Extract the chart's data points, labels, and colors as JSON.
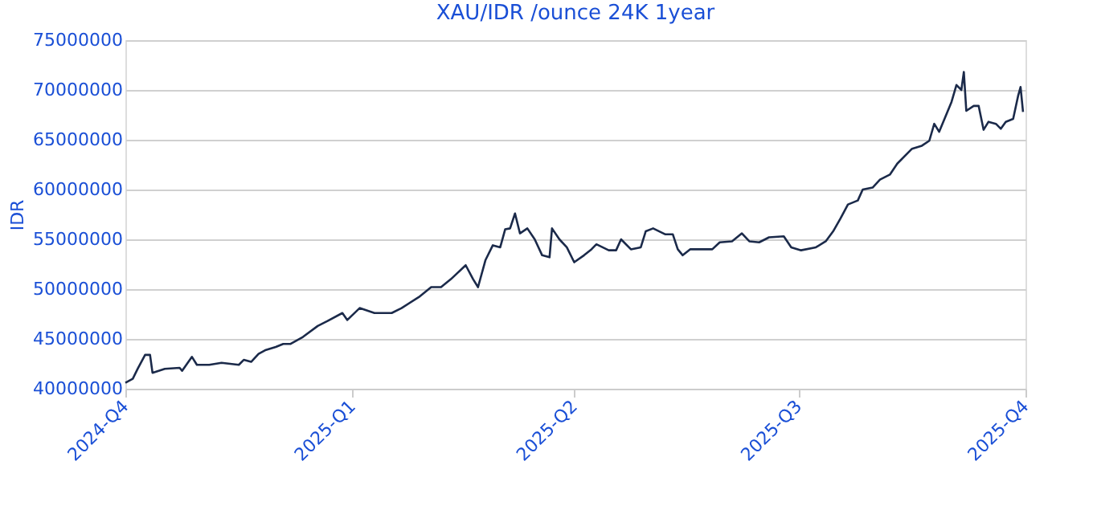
{
  "chart_data": {
    "type": "line",
    "title": "XAU/IDR /ounce 24K 1year",
    "ylabel": "IDR",
    "xlim": [
      "2024-10-01",
      "2025-10-01"
    ],
    "xticks": [
      {
        "value": "2024-10-01",
        "label": "2024-Q4"
      },
      {
        "value": "2025-01-01",
        "label": "2025-Q1"
      },
      {
        "value": "2025-04-01",
        "label": "2025-Q2"
      },
      {
        "value": "2025-07-01",
        "label": "2025-Q3"
      },
      {
        "value": "2025-10-01",
        "label": "2025-Q4"
      }
    ],
    "ylim": [
      40000000,
      75000000
    ],
    "yticks": [
      40000000,
      45000000,
      50000000,
      55000000,
      60000000,
      65000000,
      70000000,
      75000000
    ],
    "grid": "y",
    "legend": false,
    "marker": "none",
    "line_style": "solid",
    "series": [
      {
        "color": "#1b2a4a",
        "x": [
          "2024-10-01",
          "2024-10-04",
          "2024-10-06",
          "2024-10-09",
          "2024-10-11",
          "2024-10-12",
          "2024-10-17",
          "2024-10-23",
          "2024-10-24",
          "2024-10-28",
          "2024-10-30",
          "2024-11-04",
          "2024-11-09",
          "2024-11-16",
          "2024-11-18",
          "2024-11-21",
          "2024-11-24",
          "2024-11-27",
          "2024-12-01",
          "2024-12-04",
          "2024-12-07",
          "2024-12-12",
          "2024-12-18",
          "2024-12-22",
          "2024-12-28",
          "2024-12-30",
          "2025-01-04",
          "2025-01-10",
          "2025-01-17",
          "2025-01-21",
          "2025-01-28",
          "2025-02-02",
          "2025-02-06",
          "2025-02-10",
          "2025-02-16",
          "2025-02-19",
          "2025-02-21",
          "2025-02-24",
          "2025-02-27",
          "2025-03-02",
          "2025-03-04",
          "2025-03-06",
          "2025-03-08",
          "2025-03-10",
          "2025-03-13",
          "2025-03-16",
          "2025-03-19",
          "2025-03-22",
          "2025-03-23",
          "2025-03-26",
          "2025-03-29",
          "2025-04-01",
          "2025-04-05",
          "2025-04-08",
          "2025-04-10",
          "2025-04-15",
          "2025-04-18",
          "2025-04-20",
          "2025-04-24",
          "2025-04-28",
          "2025-04-30",
          "2025-05-03",
          "2025-05-08",
          "2025-05-11",
          "2025-05-13",
          "2025-05-15",
          "2025-05-18",
          "2025-05-24",
          "2025-05-27",
          "2025-05-30",
          "2025-06-04",
          "2025-06-08",
          "2025-06-11",
          "2025-06-15",
          "2025-06-19",
          "2025-06-25",
          "2025-06-28",
          "2025-07-02",
          "2025-07-08",
          "2025-07-12",
          "2025-07-15",
          "2025-07-18",
          "2025-07-21",
          "2025-07-25",
          "2025-07-27",
          "2025-07-31",
          "2025-08-03",
          "2025-08-07",
          "2025-08-10",
          "2025-08-16",
          "2025-08-20",
          "2025-08-23",
          "2025-08-25",
          "2025-08-27",
          "2025-08-29",
          "2025-09-01",
          "2025-09-03",
          "2025-09-05",
          "2025-09-06",
          "2025-09-07",
          "2025-09-10",
          "2025-09-12",
          "2025-09-14",
          "2025-09-16",
          "2025-09-19",
          "2025-09-21",
          "2025-09-23",
          "2025-09-26",
          "2025-09-28",
          "2025-09-29",
          "2025-09-30"
        ],
        "values": [
          40600000,
          41000000,
          42000000,
          43400000,
          43400000,
          41600000,
          42000000,
          42100000,
          41800000,
          43200000,
          42400000,
          42400000,
          42600000,
          42400000,
          42900000,
          42700000,
          43500000,
          43900000,
          44200000,
          44500000,
          44500000,
          45200000,
          46300000,
          46800000,
          47600000,
          46900000,
          48100000,
          47600000,
          47600000,
          48100000,
          49200000,
          50200000,
          50200000,
          51000000,
          52400000,
          51000000,
          50200000,
          52900000,
          54400000,
          54200000,
          56000000,
          56100000,
          57600000,
          55600000,
          56100000,
          55000000,
          53400000,
          53200000,
          56100000,
          55000000,
          54200000,
          52700000,
          53400000,
          54000000,
          54500000,
          53900000,
          53900000,
          55000000,
          54000000,
          54200000,
          55800000,
          56100000,
          55500000,
          55500000,
          54000000,
          53400000,
          54000000,
          54000000,
          54000000,
          54700000,
          54800000,
          55600000,
          54800000,
          54700000,
          55200000,
          55300000,
          54200000,
          53900000,
          54200000,
          54800000,
          55800000,
          57100000,
          58500000,
          58900000,
          60000000,
          60200000,
          61000000,
          61500000,
          62600000,
          64100000,
          64400000,
          64900000,
          66600000,
          65800000,
          67000000,
          68800000,
          70500000,
          70000000,
          71800000,
          67900000,
          68400000,
          68400000,
          66000000,
          66800000,
          66600000,
          66100000,
          66800000,
          67100000,
          69400000,
          70300000,
          67800000
        ]
      }
    ]
  }
}
